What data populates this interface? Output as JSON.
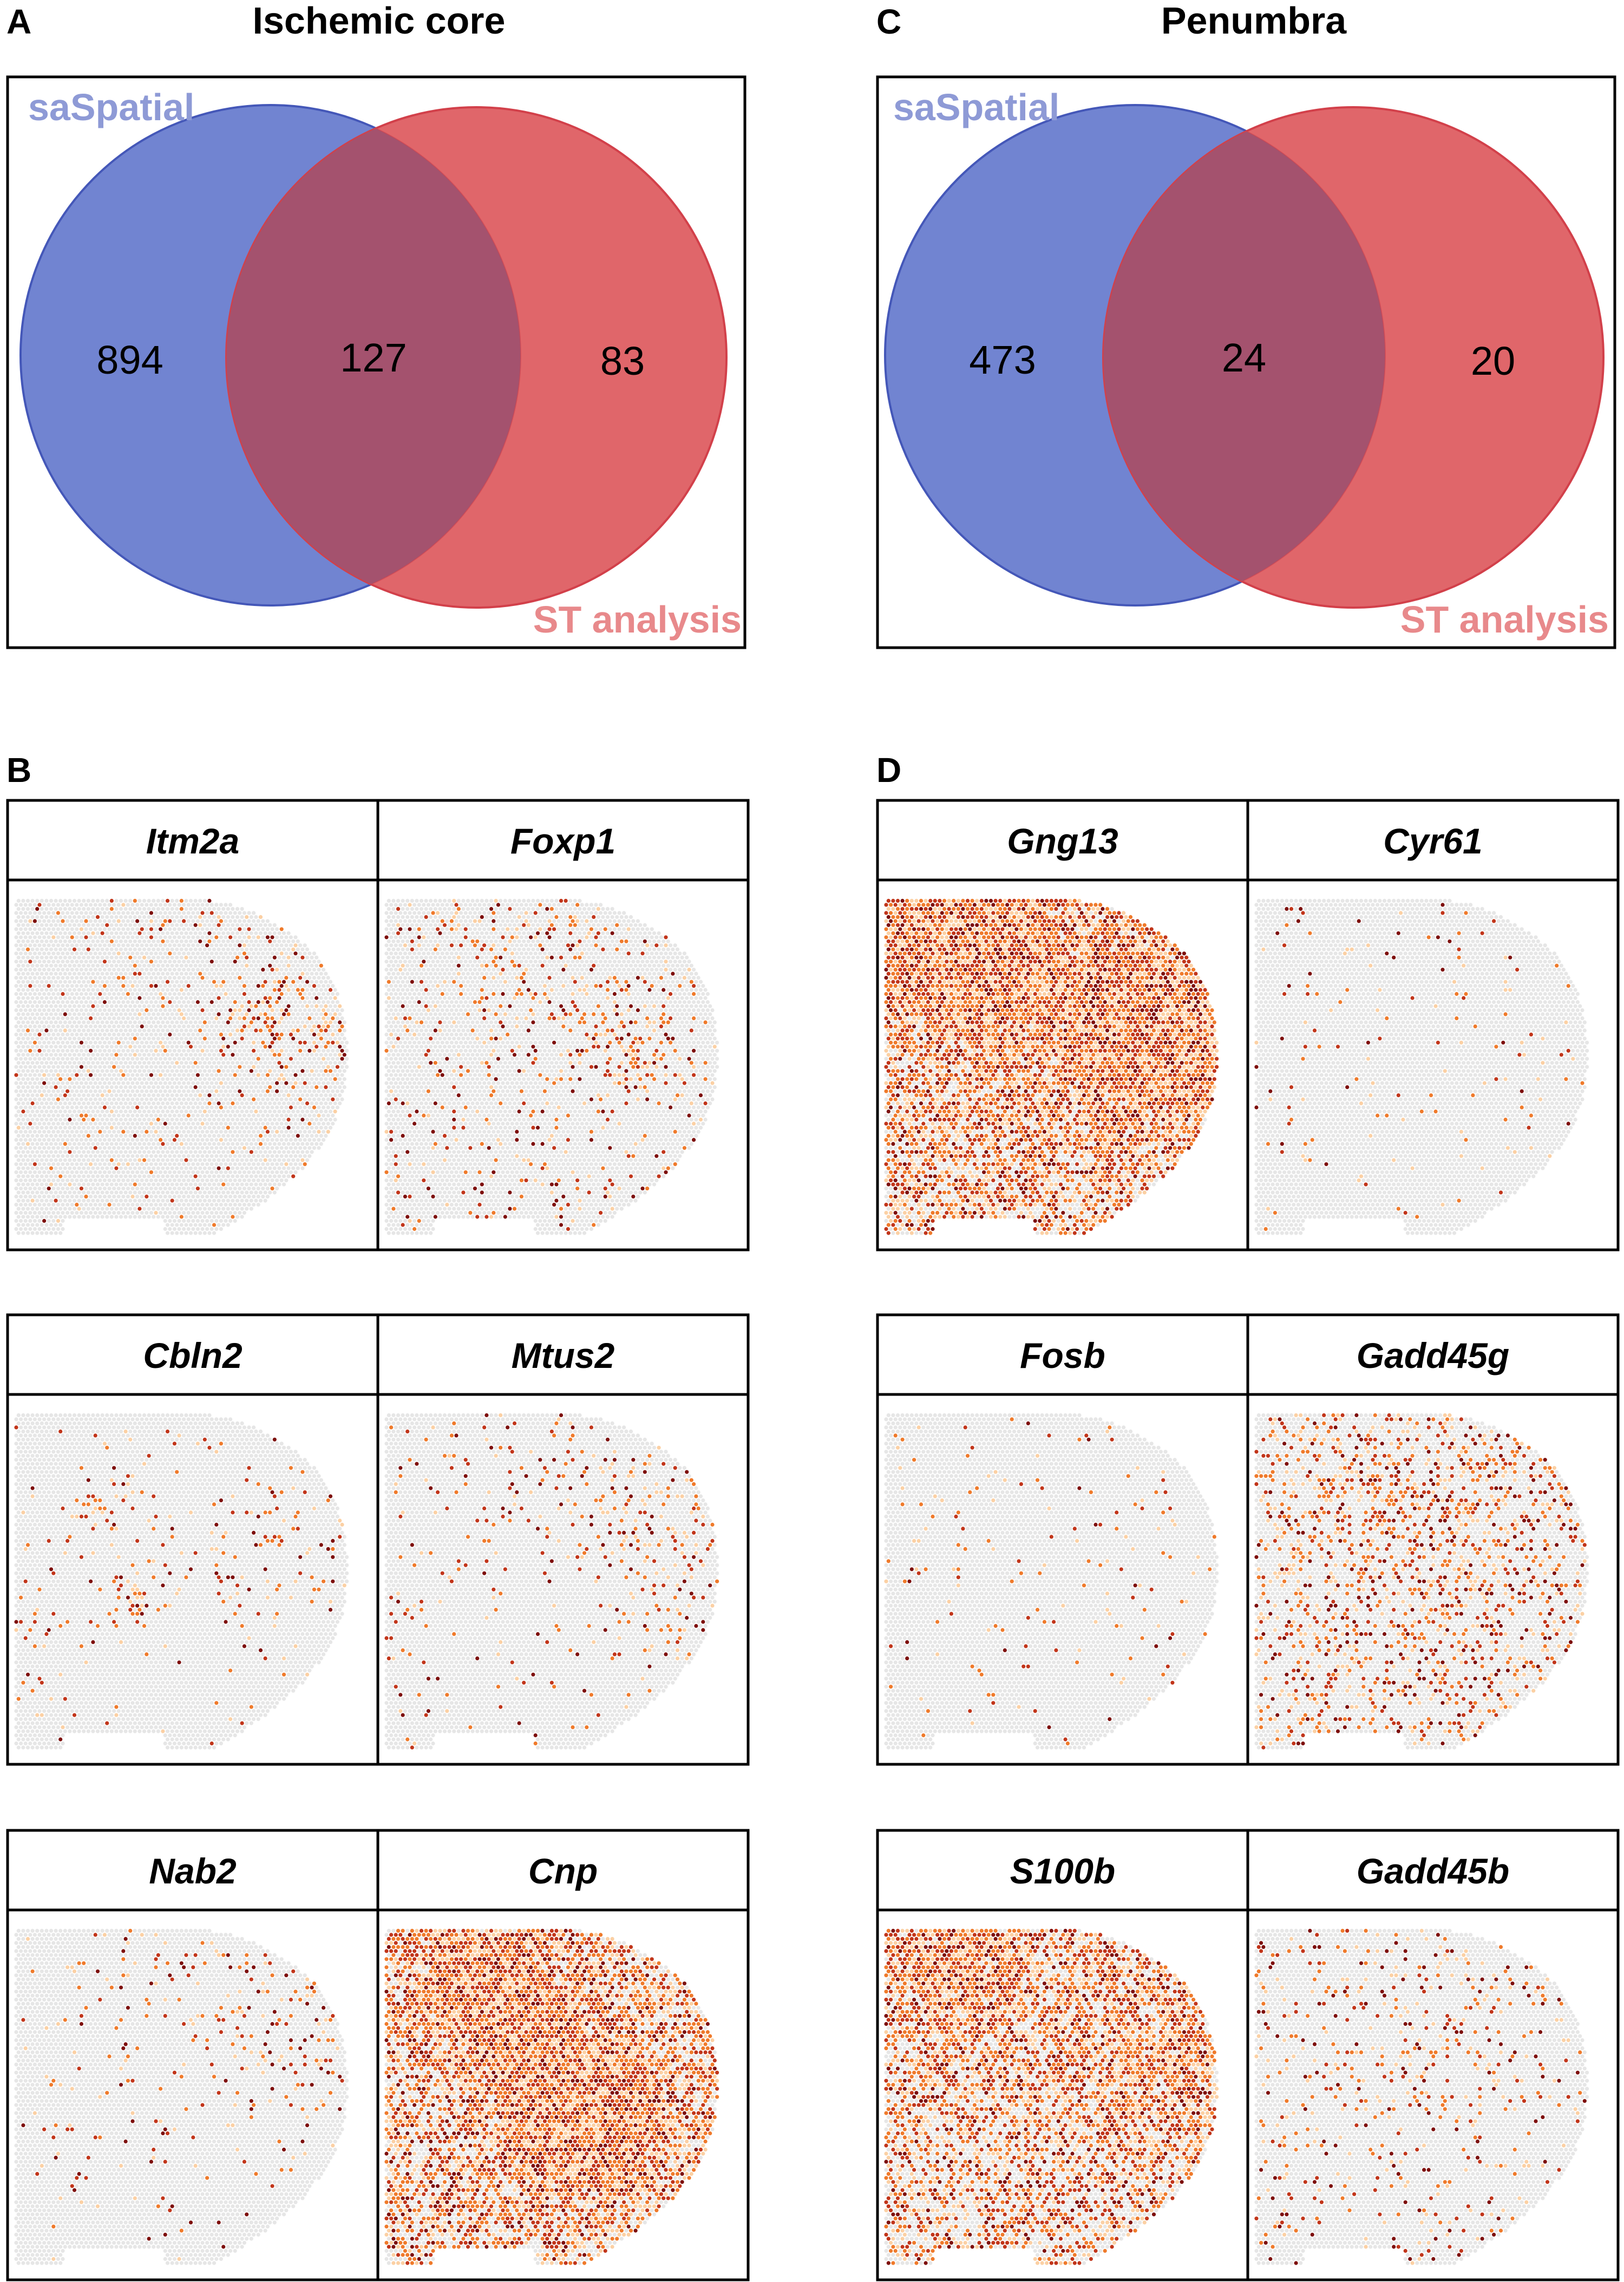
{
  "panels": {
    "A": {
      "letter": "A",
      "title": "Ischemic core",
      "set_a_label": "saSpatial",
      "set_b_label": "ST analysis",
      "only_a": "894",
      "both": "127",
      "only_b": "83"
    },
    "C": {
      "letter": "C",
      "title": "Penumbra",
      "set_a_label": "saSpatial",
      "set_b_label": "ST analysis",
      "only_a": "473",
      "both": "24",
      "only_b": "20"
    },
    "B": {
      "letter": "B",
      "genes": [
        "Itm2a",
        "Foxp1",
        "Cbln2",
        "Mtus2",
        "Nab2",
        "Cnp"
      ]
    },
    "D": {
      "letter": "D",
      "genes": [
        "Gng13",
        "Cyr61",
        "Fosb",
        "Gadd45g",
        "S100b",
        "Gadd45b"
      ]
    }
  },
  "colors": {
    "set_a_fill": "#7184d1",
    "set_a_stroke": "#4457b8",
    "set_b_fill": "#e0666a",
    "set_b_stroke": "#d2404a",
    "overlap": "#a4526e",
    "tissue_base": "#e6e6e6",
    "expr_low": "#fbd0a4",
    "expr_mid": "#ef7a2b",
    "expr_high": "#c1351a",
    "expr_max": "#7d0f0c"
  },
  "spatial_expression": {
    "Itm2a": {
      "density": 0.13,
      "hotspot": "cortex-right"
    },
    "Foxp1": {
      "density": 0.17,
      "hotspot": "striatum"
    },
    "Cbln2": {
      "density": 0.1,
      "hotspot": "left-clusters"
    },
    "Mtus2": {
      "density": 0.1,
      "hotspot": "cortex-right"
    },
    "Nab2": {
      "density": 0.07,
      "hotspot": "cortex-right"
    },
    "Cnp": {
      "density": 0.8,
      "hotspot": "white-matter"
    },
    "Gng13": {
      "density": 0.85,
      "hotspot": "dense"
    },
    "Cyr61": {
      "density": 0.03,
      "hotspot": "sparse"
    },
    "Fosb": {
      "density": 0.03,
      "hotspot": "sparse"
    },
    "Gadd45g": {
      "density": 0.32,
      "hotspot": "broad"
    },
    "S100b": {
      "density": 0.62,
      "hotspot": "dense"
    },
    "Gadd45b": {
      "density": 0.12,
      "hotspot": "broad"
    }
  }
}
